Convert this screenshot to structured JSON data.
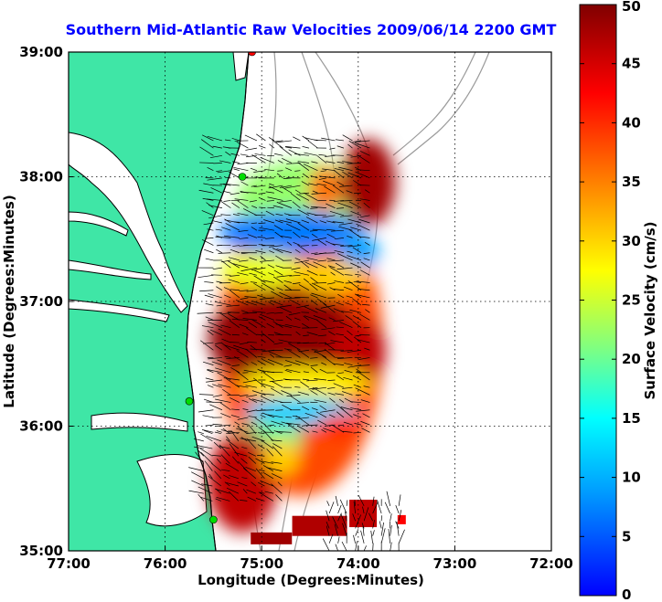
{
  "chart_data": {
    "type": "heatmap",
    "title": "Southern Mid-Atlantic Raw Velocities 2009/06/14 2200 GMT",
    "xlabel": "Longitude (Degrees:Minutes)",
    "ylabel": "Latitude (Degrees:Minutes)",
    "x_ticks": [
      "77:00",
      "76:00",
      "75:00",
      "74:00",
      "73:00",
      "72:00"
    ],
    "y_ticks": [
      "39:00",
      "38:00",
      "37:00",
      "36:00",
      "35:00"
    ],
    "xlim": [
      -77,
      -72
    ],
    "ylim": [
      35,
      39
    ],
    "grid": true,
    "colorbar": {
      "label": "Surface Velocity (cm/s)",
      "range": [
        0,
        50
      ],
      "ticks": [
        "0",
        "5",
        "10",
        "15",
        "20",
        "25",
        "30",
        "35",
        "40",
        "45",
        "50"
      ]
    },
    "colors": {
      "land": "#3fe6a6",
      "coastline": "#000000",
      "bathymetry": "#9a9a9a",
      "station": "#00dd00",
      "station_alt": "#ff0000",
      "title": "#0000ff"
    },
    "regions": [
      {
        "name": "north-core",
        "lon": -73.9,
        "lat": 37.95,
        "speed": 48
      },
      {
        "name": "north-slow-band",
        "lon": -74.6,
        "lat": 37.55,
        "speed": 7
      },
      {
        "name": "central-jet",
        "lon": -74.6,
        "lat": 36.7,
        "speed": 49
      },
      {
        "name": "south-slow-band",
        "lon": -74.6,
        "lat": 36.1,
        "speed": 12
      },
      {
        "name": "south-core",
        "lon": -75.2,
        "lat": 35.55,
        "speed": 46
      },
      {
        "name": "offshore-patch",
        "lon": -73.8,
        "lat": 35.1,
        "speed": 47
      }
    ],
    "stations": [
      {
        "lon": -75.1,
        "lat": 39.0,
        "color": "station_alt"
      },
      {
        "lon": -75.2,
        "lat": 38.0,
        "color": "station"
      },
      {
        "lon": -75.75,
        "lat": 36.2,
        "color": "station"
      },
      {
        "lon": -75.5,
        "lat": 35.25,
        "color": "station"
      }
    ]
  }
}
